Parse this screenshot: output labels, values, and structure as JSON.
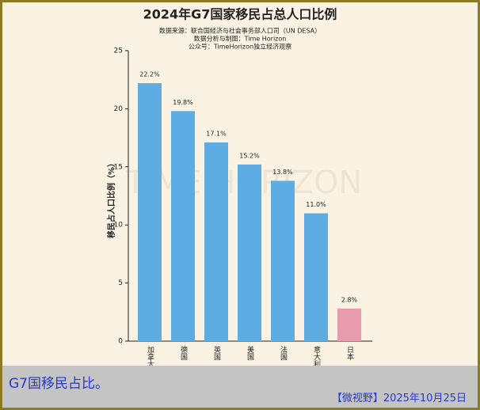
{
  "chart_data": {
    "type": "bar",
    "title": "2024年G7国家移民占总人口比例",
    "subtitle": [
      "数据来源：联合国经济与社会事务部人口司（UN DESA）",
      "数据分析与制图：Time Horizon",
      "公众号：TimeHorizon独立经济观察"
    ],
    "watermark": "TIME HORIZON",
    "y_label": "移民占人口比例（%）",
    "categories": [
      "加拿大",
      "德国",
      "英国",
      "美国",
      "法国",
      "意大利",
      "日本"
    ],
    "values": [
      22.2,
      19.8,
      17.1,
      15.2,
      13.8,
      11.0,
      2.8
    ],
    "value_labels": [
      "22.2%",
      "19.8%",
      "17.1%",
      "15.2%",
      "13.8%",
      "11.0%",
      "2.8%"
    ],
    "colors": [
      "#5dade2",
      "#5dade2",
      "#5dade2",
      "#5dade2",
      "#5dade2",
      "#5dade2",
      "#e89aae"
    ],
    "ylim": [
      0,
      25
    ],
    "yticks": [
      0,
      5,
      10,
      15,
      20,
      25
    ]
  },
  "caption": "G7国移民占比。",
  "footer": "【微视野】2025年10月25日"
}
